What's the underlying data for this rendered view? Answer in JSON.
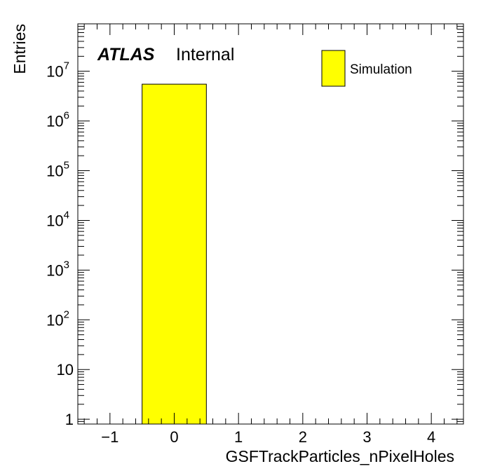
{
  "chart_data": {
    "type": "bar",
    "title": "",
    "xlabel": "GSFTrackParticles_nPixelHoles",
    "ylabel": "Entries",
    "yscale": "log",
    "xlim": [
      -1.5,
      4.5
    ],
    "ylim": [
      0.8,
      90000000
    ],
    "grid": false,
    "legend_position": "top-right",
    "x_ticks": [
      -1,
      0,
      1,
      2,
      3,
      4
    ],
    "x_tick_labels": [
      "−1",
      "0",
      "1",
      "2",
      "3",
      "4"
    ],
    "y_ticks": [
      {
        "value": 1,
        "base": "1",
        "exp": ""
      },
      {
        "value": 10,
        "base": "10",
        "exp": ""
      },
      {
        "value": 100,
        "base": "10",
        "exp": "2"
      },
      {
        "value": 1000,
        "base": "10",
        "exp": "3"
      },
      {
        "value": 10000,
        "base": "10",
        "exp": "4"
      },
      {
        "value": 100000,
        "base": "10",
        "exp": "5"
      },
      {
        "value": 1000000,
        "base": "10",
        "exp": "6"
      },
      {
        "value": 10000000,
        "base": "10",
        "exp": "7"
      }
    ],
    "series": [
      {
        "name": "Simulation",
        "color": "#ffff00",
        "edge_color": "#000000",
        "bins": [
          {
            "x_low": -0.5,
            "x_high": 0.5,
            "value": 5500000
          }
        ]
      }
    ],
    "annotations": {
      "experiment": "ATLAS",
      "status": "Internal"
    }
  }
}
